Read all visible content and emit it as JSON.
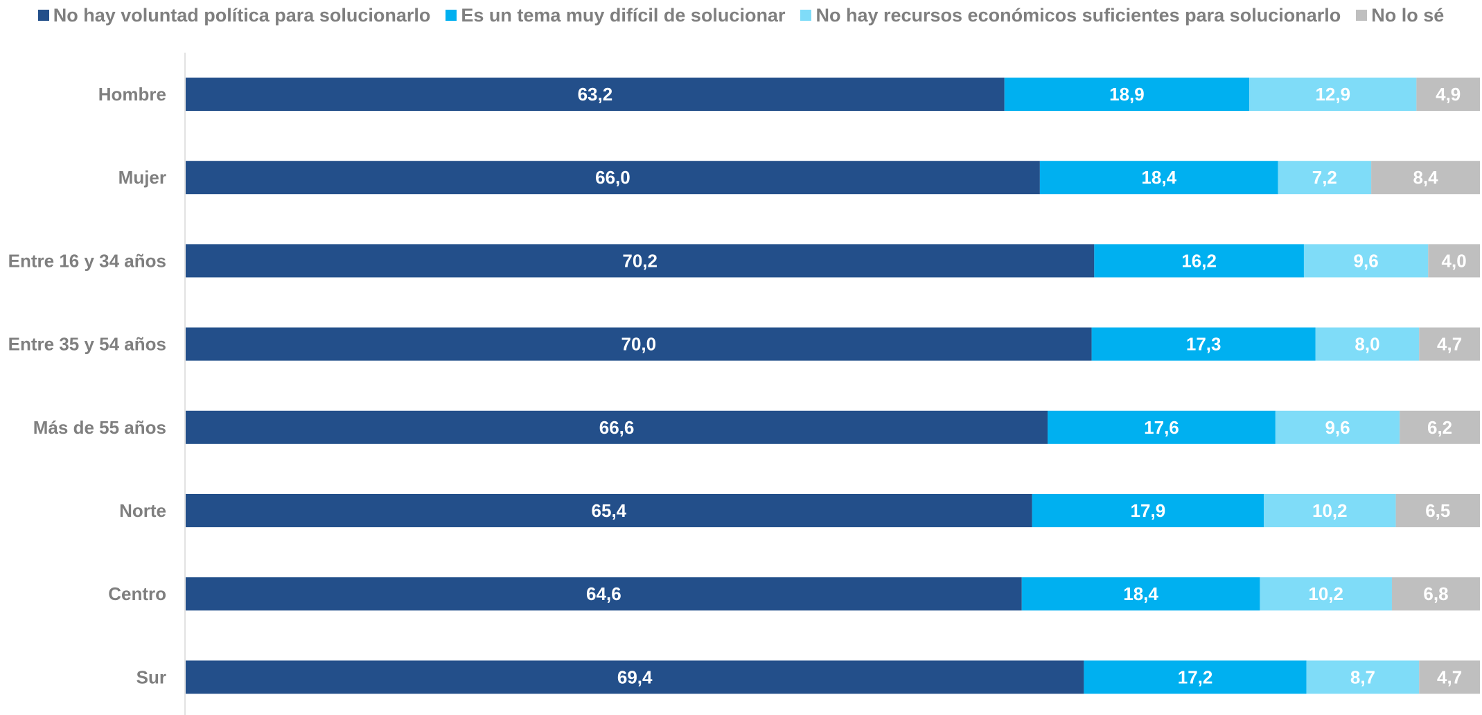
{
  "chart_data": {
    "type": "bar",
    "orientation": "horizontal",
    "stacked": true,
    "title": "",
    "xlabel": "",
    "ylabel": "",
    "legend_position": "top",
    "grid": false,
    "categories": [
      "Hombre",
      "Mujer",
      "Entre 16 y 34 años",
      "Entre 35 y 54 años",
      "Más de 55 años",
      "Norte",
      "Centro",
      "Sur"
    ],
    "series": [
      {
        "name": "No hay voluntad política para solucionarlo",
        "color": "#234f8a",
        "values": [
          63.2,
          66.0,
          70.2,
          70.0,
          66.6,
          65.4,
          64.6,
          69.4
        ],
        "labels": [
          "63,2",
          "66,0",
          "70,2",
          "70,0",
          "66,6",
          "65,4",
          "64,6",
          "69,4"
        ]
      },
      {
        "name": "Es un tema muy difícil de solucionar",
        "color": "#00b0f0",
        "values": [
          18.9,
          18.4,
          16.2,
          17.3,
          17.6,
          17.9,
          18.4,
          17.2
        ],
        "labels": [
          "18,9",
          "18,4",
          "16,2",
          "17,3",
          "17,6",
          "17,9",
          "18,4",
          "17,2"
        ]
      },
      {
        "name": "No hay recursos económicos suficientes para solucionarlo",
        "color": "#7fdcf8",
        "values": [
          12.9,
          7.2,
          9.6,
          8.0,
          9.6,
          10.2,
          10.2,
          8.7
        ],
        "labels": [
          "12,9",
          "7,2",
          "9,6",
          "8,0",
          "9,6",
          "10,2",
          "10,2",
          "8,7"
        ]
      },
      {
        "name": "No lo sé",
        "color": "#bfbfbf",
        "values": [
          4.9,
          8.4,
          4.0,
          4.7,
          6.2,
          6.5,
          6.8,
          4.7
        ],
        "labels": [
          "4,9",
          "8,4",
          "4,0",
          "4,7",
          "6,2",
          "6,5",
          "6,8",
          "4,7"
        ]
      }
    ]
  }
}
